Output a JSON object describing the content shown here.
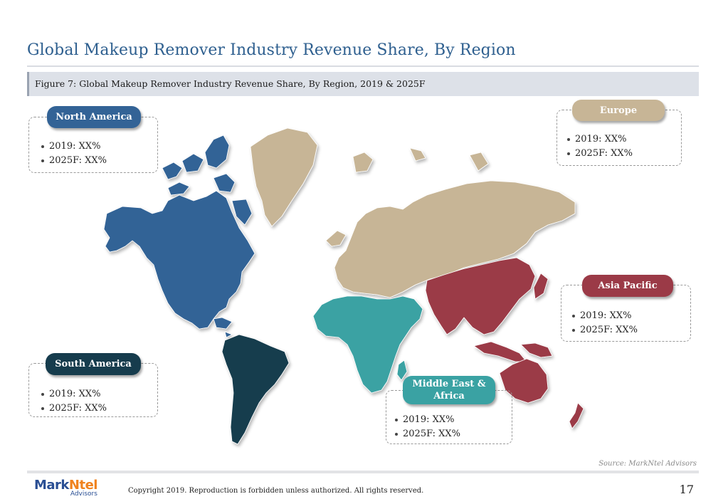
{
  "header": {
    "title": "Global Makeup Remover Industry Revenue Share, By Region",
    "figure_caption": "Figure 7: Global Makeup Remover Industry Revenue Share, By Region, 2019 & 2025F"
  },
  "regions": {
    "north_america": {
      "label": "North America",
      "line_2019": "2019: XX%",
      "line_2025": "2025F: XX%",
      "color": "#336396"
    },
    "europe": {
      "label": "Europe",
      "line_2019": "2019: XX%",
      "line_2025": "2025F: XX%",
      "color": "#c7b596"
    },
    "asia_pacific": {
      "label": "Asia Pacific",
      "line_2019": "2019: XX%",
      "line_2025": "2025F: XX%",
      "color": "#9b3a47"
    },
    "south_america": {
      "label": "South America",
      "line_2019": "2019: XX%",
      "line_2025": "2025F: XX%",
      "color": "#163c4d"
    },
    "middle_east_africa": {
      "label_line1": "Middle East &",
      "label_line2": "Africa",
      "line_2019": "2019: XX%",
      "line_2025": "2025F: XX%",
      "color": "#3aa2a3"
    }
  },
  "footer": {
    "source": "Source: MarkNtel Advisors",
    "logo_part1": "Mark",
    "logo_part2": "Ntel",
    "logo_sub": "Advisors",
    "copyright": "Copyright 2019. Reproduction is forbidden unless authorized. All rights reserved.",
    "page_number": "17"
  }
}
